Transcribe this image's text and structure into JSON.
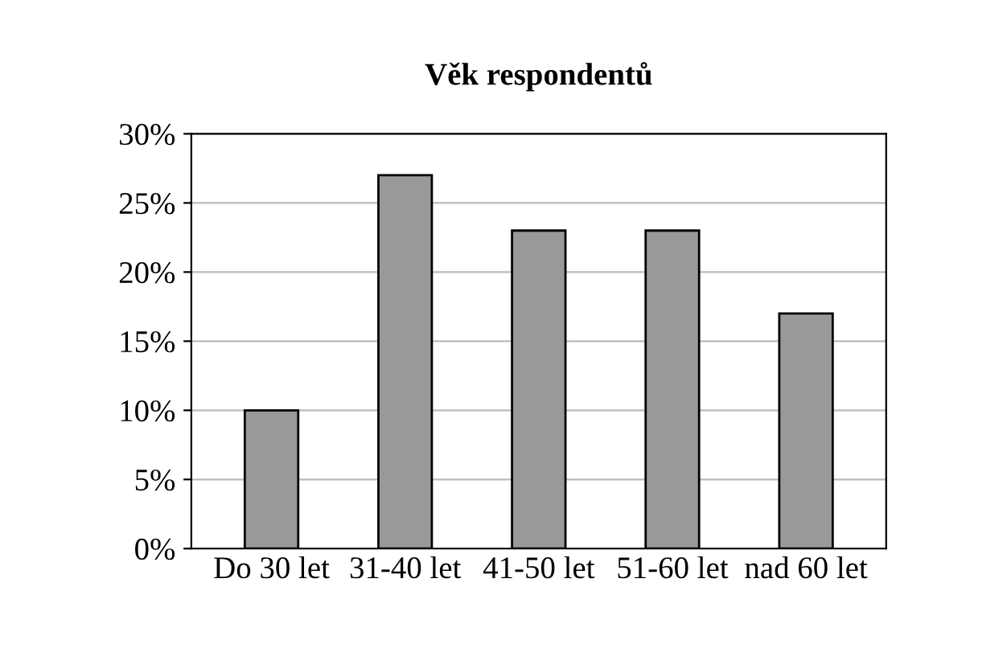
{
  "chart_data": {
    "type": "bar",
    "title": "Věk respondentů",
    "categories": [
      "Do 30 let",
      "31-40 let",
      "41-50 let",
      "51-60 let",
      "nad 60 let"
    ],
    "values": [
      10,
      27,
      23,
      23,
      17
    ],
    "color": "#999999",
    "ylim": [
      0,
      30
    ],
    "yticks": [
      {
        "value": 0,
        "label": "0%"
      },
      {
        "value": 5,
        "label": "5%"
      },
      {
        "value": 10,
        "label": "10%"
      },
      {
        "value": 15,
        "label": "15%"
      },
      {
        "value": 20,
        "label": "20%"
      },
      {
        "value": 25,
        "label": "25%"
      },
      {
        "value": 30,
        "label": "30%"
      }
    ],
    "grid": "y",
    "legend": false
  }
}
